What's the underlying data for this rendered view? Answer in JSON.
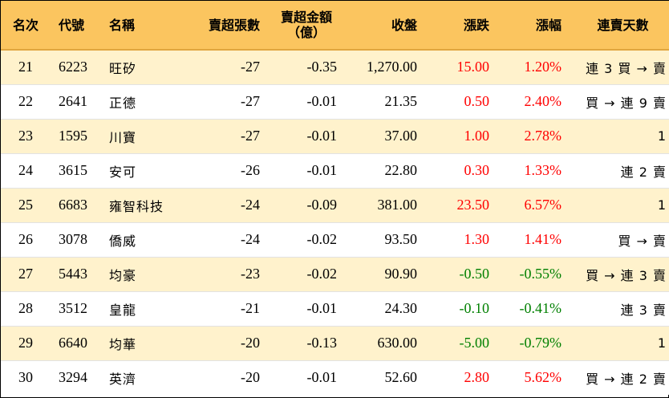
{
  "colors": {
    "header_bg": "#fbc55f",
    "odd_row_bg": "#fff2cc",
    "even_row_bg": "#ffffff",
    "up": "#ff0000",
    "down": "#008000"
  },
  "headers": {
    "rank": "名次",
    "code": "代號",
    "name": "名稱",
    "net_sell_lots": "賣超張數",
    "net_sell_amount_line1": "賣超金額",
    "net_sell_amount_line2": "（億）",
    "close": "收盤",
    "change": "漲跌",
    "change_pct": "漲幅",
    "streak": "連賣天數"
  },
  "rows": [
    {
      "rank": "21",
      "code": "6223",
      "name": "旺矽",
      "lots": "-27",
      "amount": "-0.35",
      "close": "1,270.00",
      "change": "15.00",
      "pct": "1.20%",
      "streak": "連 3 買 → 賣",
      "dir": "up"
    },
    {
      "rank": "22",
      "code": "2641",
      "name": "正德",
      "lots": "-27",
      "amount": "-0.01",
      "close": "21.35",
      "change": "0.50",
      "pct": "2.40%",
      "streak": "買 → 連 9 賣",
      "dir": "up"
    },
    {
      "rank": "23",
      "code": "1595",
      "name": "川寶",
      "lots": "-27",
      "amount": "-0.01",
      "close": "37.00",
      "change": "1.00",
      "pct": "2.78%",
      "streak": "1",
      "dir": "up"
    },
    {
      "rank": "24",
      "code": "3615",
      "name": "安可",
      "lots": "-26",
      "amount": "-0.01",
      "close": "22.80",
      "change": "0.30",
      "pct": "1.33%",
      "streak": "連 2 賣",
      "dir": "up"
    },
    {
      "rank": "25",
      "code": "6683",
      "name": "雍智科技",
      "lots": "-24",
      "amount": "-0.09",
      "close": "381.00",
      "change": "23.50",
      "pct": "6.57%",
      "streak": "1",
      "dir": "up"
    },
    {
      "rank": "26",
      "code": "3078",
      "name": "僑威",
      "lots": "-24",
      "amount": "-0.02",
      "close": "93.50",
      "change": "1.30",
      "pct": "1.41%",
      "streak": "買 → 賣",
      "dir": "up"
    },
    {
      "rank": "27",
      "code": "5443",
      "name": "均豪",
      "lots": "-23",
      "amount": "-0.02",
      "close": "90.90",
      "change": "-0.50",
      "pct": "-0.55%",
      "streak": "買 → 連 3 賣",
      "dir": "down"
    },
    {
      "rank": "28",
      "code": "3512",
      "name": "皇龍",
      "lots": "-21",
      "amount": "-0.01",
      "close": "24.30",
      "change": "-0.10",
      "pct": "-0.41%",
      "streak": "連 3 賣",
      "dir": "down"
    },
    {
      "rank": "29",
      "code": "6640",
      "name": "均華",
      "lots": "-20",
      "amount": "-0.13",
      "close": "630.00",
      "change": "-5.00",
      "pct": "-0.79%",
      "streak": "1",
      "dir": "down"
    },
    {
      "rank": "30",
      "code": "3294",
      "name": "英濟",
      "lots": "-20",
      "amount": "-0.01",
      "close": "52.60",
      "change": "2.80",
      "pct": "5.62%",
      "streak": "買 → 連 2 賣",
      "dir": "up"
    }
  ]
}
